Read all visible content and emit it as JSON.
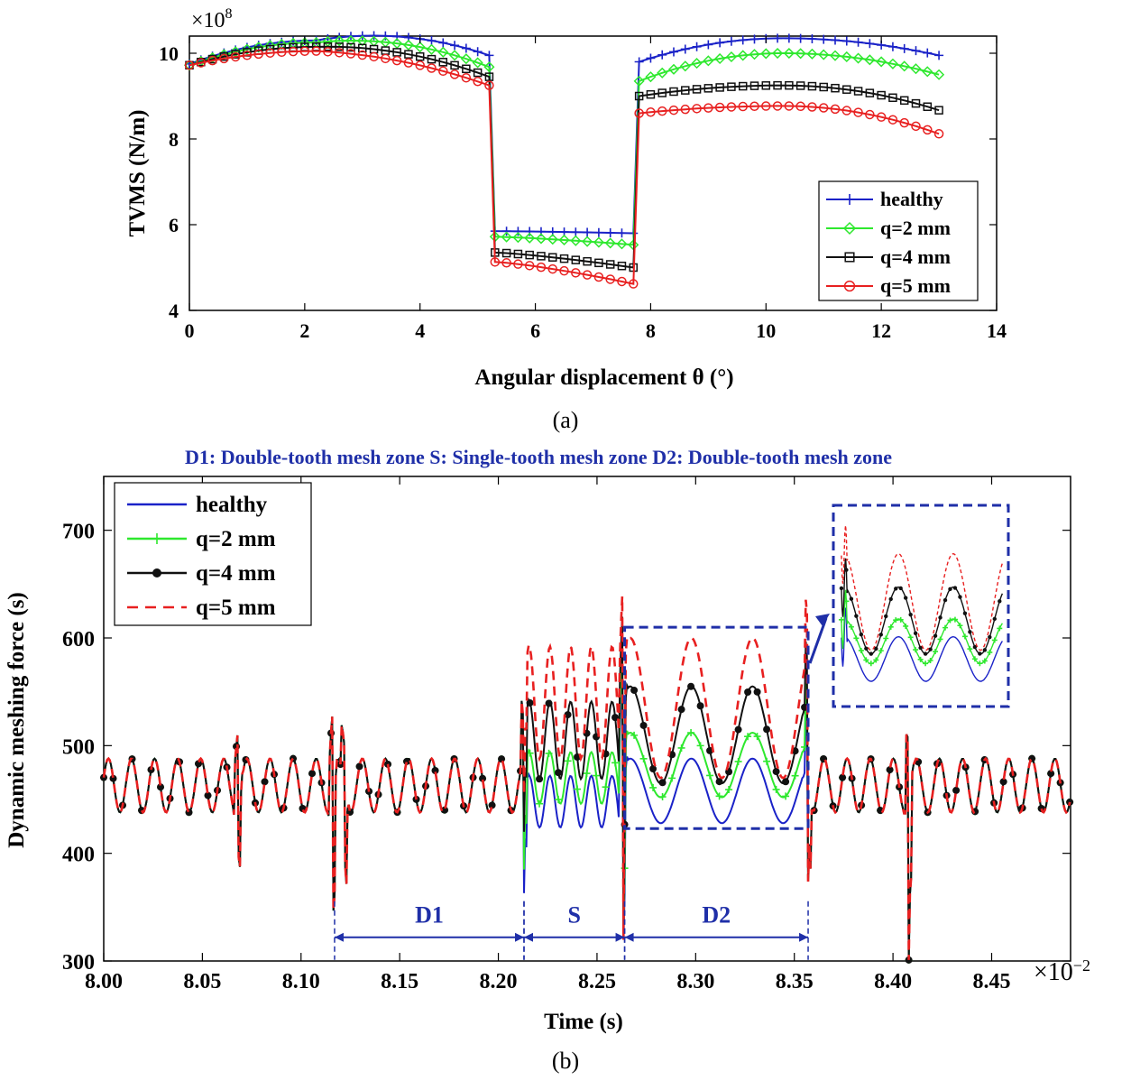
{
  "chart_data": [
    {
      "id": "a",
      "type": "line",
      "caption": "(a)",
      "xlabel": "Angular displacement θ (°)",
      "ylabel": "TVMS (N/m)",
      "multiplier": "×10",
      "multiplier_exp": "8",
      "xlim": [
        0,
        14
      ],
      "ylim": [
        4,
        10.4
      ],
      "xticks": [
        "0",
        "2",
        "4",
        "6",
        "8",
        "10",
        "12",
        "14"
      ],
      "yticks": [
        "4",
        "6",
        "8",
        "10"
      ],
      "legend_position": "bottom-right",
      "series": [
        {
          "name": "healthy",
          "color": "#1a22c8",
          "marker": "plus",
          "double_zone": {
            "start": 9.75,
            "peak": 10.3,
            "end_first": 9.95,
            "start_second": 9.8,
            "end": 9.95
          },
          "single_zone": {
            "start": 5.85,
            "end": 5.8
          }
        },
        {
          "name": "q=2 mm",
          "color": "#2ee82e",
          "marker": "diamond",
          "double_zone": {
            "start": 9.72,
            "peak": 10.25,
            "end_first": 9.68,
            "start_second": 9.35,
            "end": 9.5
          },
          "single_zone": {
            "start": 5.72,
            "end": 5.53
          }
        },
        {
          "name": "q=4 mm",
          "color": "#111111",
          "marker": "square",
          "double_zone": {
            "start": 9.72,
            "peak": 10.15,
            "end_first": 9.45,
            "start_second": 9.0,
            "end": 8.67
          },
          "single_zone": {
            "start": 5.35,
            "end": 5.0
          }
        },
        {
          "name": "q=5 mm",
          "color": "#e82020",
          "marker": "circle",
          "double_zone": {
            "start": 9.72,
            "peak": 10.05,
            "end_first": 9.25,
            "start_second": 8.6,
            "end": 8.12
          },
          "single_zone": {
            "start": 5.13,
            "end": 4.62
          }
        }
      ]
    },
    {
      "id": "b",
      "type": "line",
      "caption": "(b)",
      "title": "D1: Double-tooth mesh zone  S: Single-tooth mesh zone D2: Double-tooth mesh zone",
      "xlabel": "Time (s)",
      "ylabel": "Dynamic meshing force (s)",
      "multiplier": "×10",
      "multiplier_exp": "−2",
      "xlim": [
        8.0,
        8.49
      ],
      "ylim": [
        300,
        750
      ],
      "xticks": [
        "8.00",
        "8.05",
        "8.10",
        "8.15",
        "8.20",
        "8.25",
        "8.30",
        "8.35",
        "8.40",
        "8.45"
      ],
      "yticks": [
        "300",
        "400",
        "500",
        "600",
        "700"
      ],
      "legend_position": "top-left",
      "zones": [
        {
          "label": "D1",
          "start": 8.117,
          "end": 8.213
        },
        {
          "label": "S",
          "start": 8.213,
          "end": 8.264
        },
        {
          "label": "D2",
          "start": 8.264,
          "end": 8.357
        }
      ],
      "series": [
        {
          "name": "healthy",
          "color": "#1a22c8",
          "style": "solid",
          "s_level": 448,
          "d2_level": 458,
          "amp": 30
        },
        {
          "name": "q=2 mm",
          "color": "#2ee82e",
          "style": "plus",
          "s_level": 470,
          "d2_level": 482,
          "amp": 30
        },
        {
          "name": "q=4 mm",
          "color": "#111111",
          "style": "star",
          "s_level": 505,
          "d2_level": 510,
          "amp": 45
        },
        {
          "name": "q=5 mm",
          "color": "#e82020",
          "style": "dashed",
          "s_level": 540,
          "d2_level": 535,
          "amp": 65
        }
      ]
    }
  ]
}
